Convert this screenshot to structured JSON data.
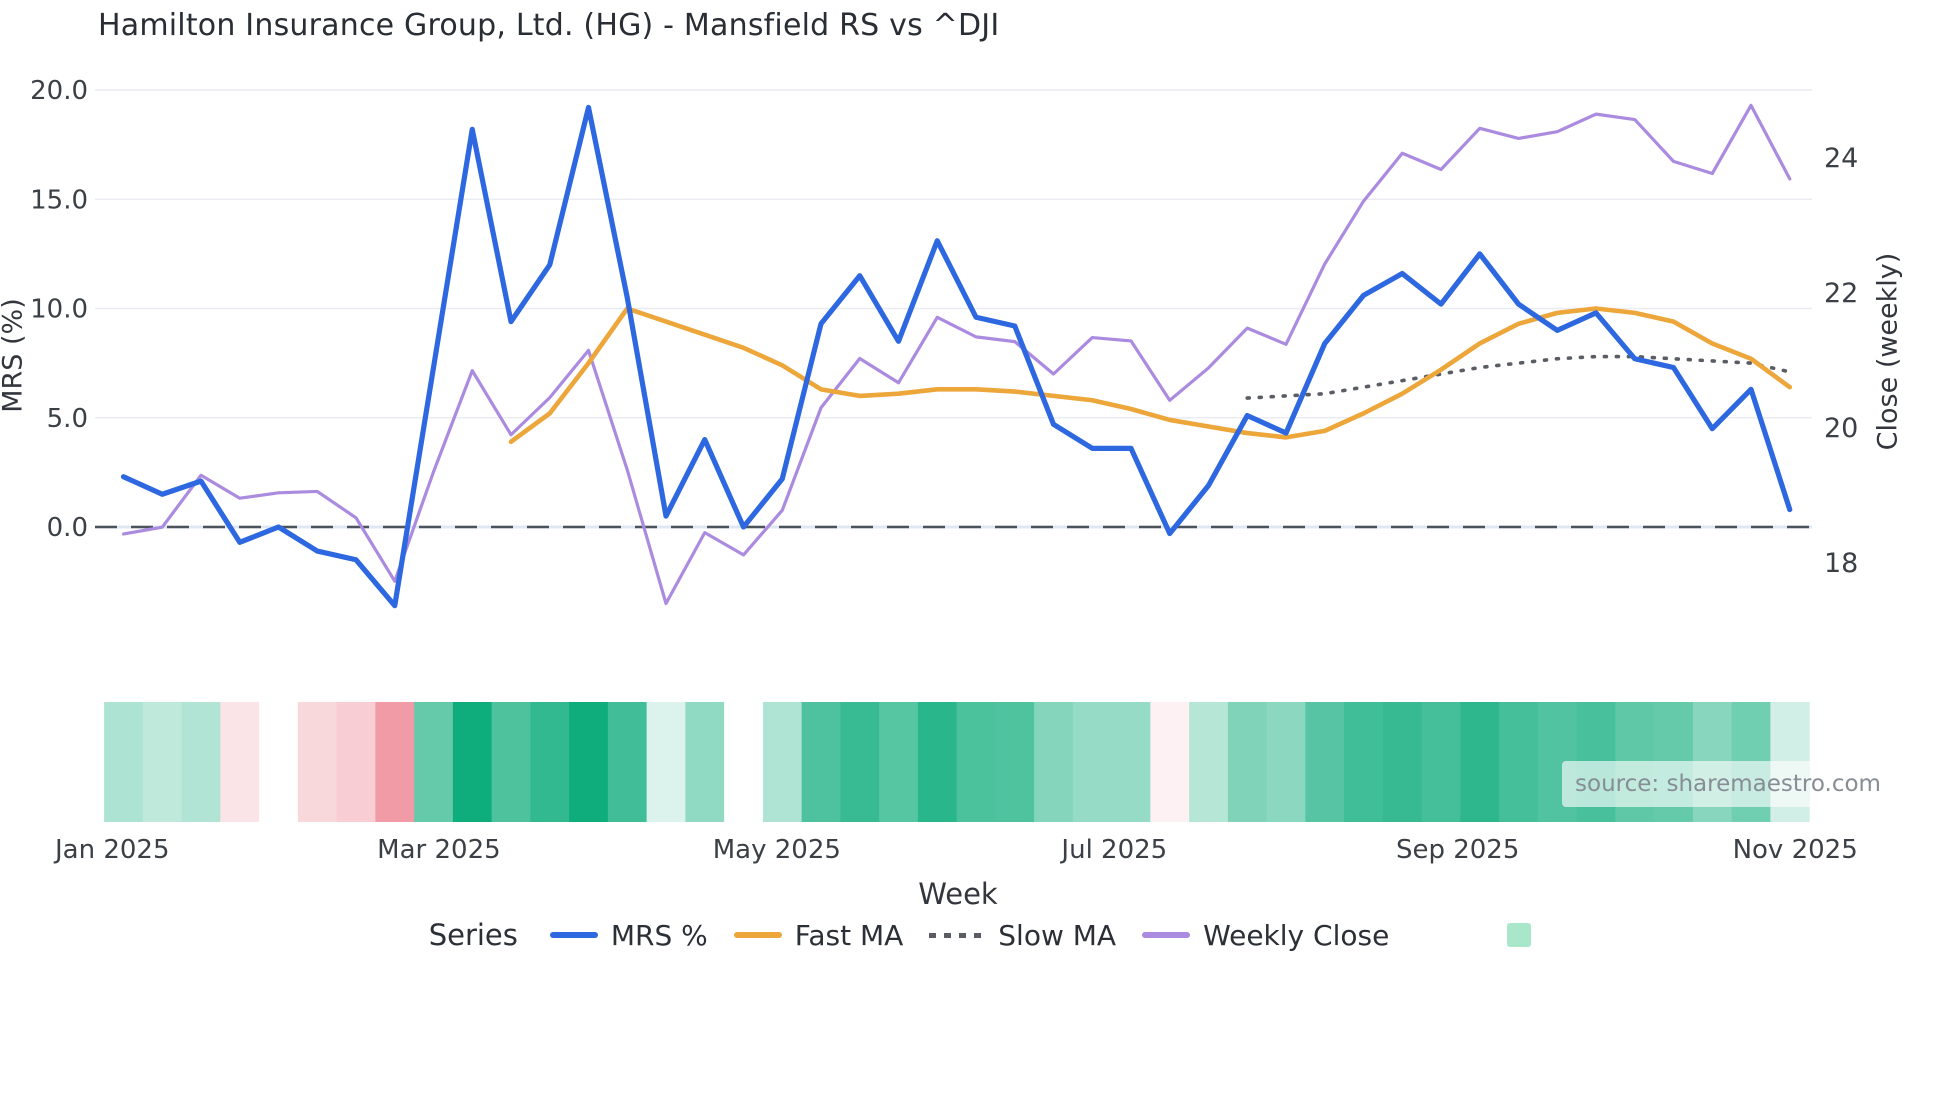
{
  "title": "Hamilton Insurance Group, Ltd. (HG) - Mansfield RS vs ^DJI",
  "source_note": "source: sharemaestro.com",
  "legend": {
    "title": "Series",
    "items": [
      {
        "label": "MRS %",
        "marker": "line",
        "color": "#2d68e0"
      },
      {
        "label": "Fast MA",
        "marker": "line",
        "color": "#eca63a"
      },
      {
        "label": "Slow MA",
        "marker": "dotted-line",
        "color": "#5a5e64"
      },
      {
        "label": "Weekly Close",
        "marker": "line",
        "color": "#ab8be0"
      },
      {
        "label": "",
        "marker": "swatch",
        "color": "#a9e7cb"
      }
    ]
  },
  "chart_data": {
    "type": "line",
    "title": "Hamilton Insurance Group, Ltd. (HG) - Mansfield RS vs ^DJI",
    "weeks": 44,
    "x_axis": {
      "label": "Week",
      "tick_labels": [
        "Jan 2025",
        "Mar 2025",
        "May 2025",
        "Jul 2025",
        "Sep 2025",
        "Nov 2025"
      ],
      "tick_week_positions": [
        -0.29,
        8.14,
        16.86,
        25.57,
        34.43,
        43.14
      ]
    },
    "y_left": {
      "label": "MRS (%)",
      "ticks": [
        0,
        5,
        10,
        15,
        20
      ],
      "tick_labels": [
        "0.0",
        "5.0",
        "10.0",
        "15.0",
        "20.0"
      ],
      "zero_line": 0,
      "grid": true
    },
    "y_right": {
      "label": "Close (weekly)",
      "ticks": [
        18,
        20,
        22,
        24
      ],
      "tick_labels": [
        "18",
        "20",
        "22",
        "24"
      ]
    },
    "series": [
      {
        "name": "Weekly Close",
        "axis": "right",
        "color": "#ab8be0",
        "style": "solid",
        "width": 3.2,
        "values": [
          18.43,
          18.53,
          19.3,
          18.96,
          19.04,
          19.06,
          18.67,
          17.73,
          19.35,
          20.85,
          19.9,
          20.45,
          21.15,
          19.38,
          17.4,
          18.45,
          18.12,
          18.78,
          20.3,
          21.03,
          20.67,
          21.64,
          21.35,
          21.28,
          20.8,
          21.34,
          21.29,
          20.41,
          20.89,
          21.48,
          21.24,
          22.43,
          23.36,
          24.07,
          23.83,
          24.44,
          24.29,
          24.39,
          24.65,
          24.57,
          23.95,
          23.77,
          24.78,
          23.69
        ]
      },
      {
        "name": "Slow MA",
        "axis": "left",
        "color": "#5a5e64",
        "style": "dotted",
        "width": 3.6,
        "values": [
          null,
          null,
          null,
          null,
          null,
          null,
          null,
          null,
          null,
          null,
          null,
          null,
          null,
          null,
          null,
          null,
          null,
          null,
          null,
          null,
          null,
          null,
          null,
          null,
          null,
          null,
          null,
          null,
          null,
          5.9,
          6.0,
          6.1,
          6.4,
          6.7,
          7.0,
          7.3,
          7.5,
          7.7,
          7.8,
          7.8,
          7.7,
          7.6,
          7.5,
          7.1
        ]
      },
      {
        "name": "Fast MA",
        "axis": "left",
        "color": "#eca63a",
        "style": "solid",
        "width": 4.6,
        "values": [
          null,
          null,
          null,
          null,
          null,
          null,
          null,
          null,
          null,
          null,
          3.9,
          5.2,
          7.5,
          10.0,
          9.4,
          8.8,
          8.2,
          7.4,
          6.3,
          6.0,
          6.1,
          6.3,
          6.3,
          6.2,
          6.0,
          5.8,
          5.4,
          4.9,
          4.6,
          4.3,
          4.1,
          4.4,
          5.2,
          6.1,
          7.2,
          8.4,
          9.3,
          9.8,
          10.0,
          9.8,
          9.4,
          8.4,
          7.7,
          6.4
        ]
      },
      {
        "name": "MRS %",
        "axis": "left",
        "color": "#2d68e0",
        "style": "solid",
        "width": 5.2,
        "values": [
          2.3,
          1.5,
          2.1,
          -0.7,
          0.0,
          -1.1,
          -1.5,
          -3.6,
          7.3,
          18.2,
          9.4,
          12.0,
          19.2,
          10.5,
          0.5,
          4.0,
          0.0,
          2.2,
          9.3,
          11.5,
          8.5,
          13.1,
          9.6,
          9.2,
          4.7,
          3.6,
          3.6,
          -0.3,
          1.9,
          5.1,
          4.3,
          8.4,
          10.6,
          11.6,
          10.2,
          12.5,
          10.2,
          9.0,
          9.8,
          7.7,
          7.3,
          4.5,
          6.3,
          0.8
        ]
      }
    ],
    "heatmap": {
      "encodes": "MRS %",
      "positive_color": "#10ad7c",
      "negative_color": "#ef929e",
      "values_from_series": "MRS %"
    }
  }
}
